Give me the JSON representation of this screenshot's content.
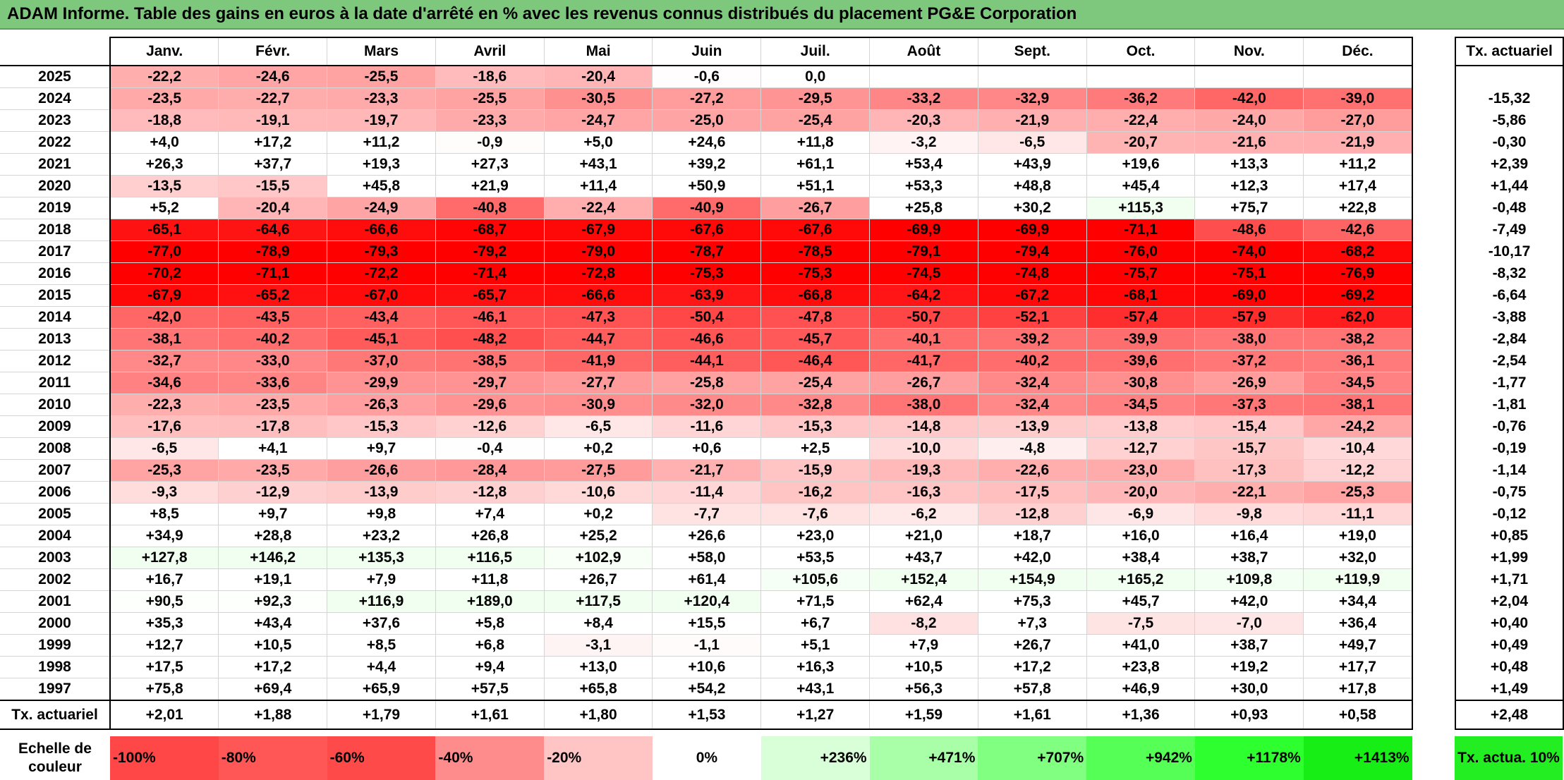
{
  "title": "ADAM Informe. Table des gains en euros à la date d'arrêté en % avec les revenus connus distribués du placement PG&E Corporation",
  "months": [
    "Janv.",
    "Févr.",
    "Mars",
    "Avril",
    "Mai",
    "Juin",
    "Juil.",
    "Août",
    "Sept.",
    "Oct.",
    "Nov.",
    "Déc."
  ],
  "side_header": "Tx. actuariel",
  "rows": [
    {
      "year": "2025",
      "values": [
        "-22,2",
        "-24,6",
        "-25,5",
        "-18,6",
        "-20,4",
        "-0,6",
        "0,0",
        "",
        "",
        "",
        "",
        ""
      ],
      "tx": ""
    },
    {
      "year": "2024",
      "values": [
        "-23,5",
        "-22,7",
        "-23,3",
        "-25,5",
        "-30,5",
        "-27,2",
        "-29,5",
        "-33,2",
        "-32,9",
        "-36,2",
        "-42,0",
        "-39,0"
      ],
      "tx": "-15,32"
    },
    {
      "year": "2023",
      "values": [
        "-18,8",
        "-19,1",
        "-19,7",
        "-23,3",
        "-24,7",
        "-25,0",
        "-25,4",
        "-20,3",
        "-21,9",
        "-22,4",
        "-24,0",
        "-27,0"
      ],
      "tx": "-5,86"
    },
    {
      "year": "2022",
      "values": [
        "+4,0",
        "+17,2",
        "+11,2",
        "-0,9",
        "+5,0",
        "+24,6",
        "+11,8",
        "-3,2",
        "-6,5",
        "-20,7",
        "-21,6",
        "-21,9"
      ],
      "tx": "-0,30"
    },
    {
      "year": "2021",
      "values": [
        "+26,3",
        "+37,7",
        "+19,3",
        "+27,3",
        "+43,1",
        "+39,2",
        "+61,1",
        "+53,4",
        "+43,9",
        "+19,6",
        "+13,3",
        "+11,2"
      ],
      "tx": "+2,39"
    },
    {
      "year": "2020",
      "values": [
        "-13,5",
        "-15,5",
        "+45,8",
        "+21,9",
        "+11,4",
        "+50,9",
        "+51,1",
        "+53,3",
        "+48,8",
        "+45,4",
        "+12,3",
        "+17,4"
      ],
      "tx": "+1,44"
    },
    {
      "year": "2019",
      "values": [
        "+5,2",
        "-20,4",
        "-24,9",
        "-40,8",
        "-22,4",
        "-40,9",
        "-26,7",
        "+25,8",
        "+30,2",
        "+115,3",
        "+75,7",
        "+22,8"
      ],
      "tx": "-0,48"
    },
    {
      "year": "2018",
      "values": [
        "-65,1",
        "-64,6",
        "-66,6",
        "-68,7",
        "-67,9",
        "-67,6",
        "-67,6",
        "-69,9",
        "-69,9",
        "-71,1",
        "-48,6",
        "-42,6"
      ],
      "tx": "-7,49"
    },
    {
      "year": "2017",
      "values": [
        "-77,0",
        "-78,9",
        "-79,3",
        "-79,2",
        "-79,0",
        "-78,7",
        "-78,5",
        "-79,1",
        "-79,4",
        "-76,0",
        "-74,0",
        "-68,2"
      ],
      "tx": "-10,17"
    },
    {
      "year": "2016",
      "values": [
        "-70,2",
        "-71,1",
        "-72,2",
        "-71,4",
        "-72,8",
        "-75,3",
        "-75,3",
        "-74,5",
        "-74,8",
        "-75,7",
        "-75,1",
        "-76,9"
      ],
      "tx": "-8,32"
    },
    {
      "year": "2015",
      "values": [
        "-67,9",
        "-65,2",
        "-67,0",
        "-65,7",
        "-66,6",
        "-63,9",
        "-66,8",
        "-64,2",
        "-67,2",
        "-68,1",
        "-69,0",
        "-69,2"
      ],
      "tx": "-6,64"
    },
    {
      "year": "2014",
      "values": [
        "-42,0",
        "-43,5",
        "-43,4",
        "-46,1",
        "-47,3",
        "-50,4",
        "-47,8",
        "-50,7",
        "-52,1",
        "-57,4",
        "-57,9",
        "-62,0"
      ],
      "tx": "-3,88"
    },
    {
      "year": "2013",
      "values": [
        "-38,1",
        "-40,2",
        "-45,1",
        "-48,2",
        "-44,7",
        "-46,6",
        "-45,7",
        "-40,1",
        "-39,2",
        "-39,9",
        "-38,0",
        "-38,2"
      ],
      "tx": "-2,84"
    },
    {
      "year": "2012",
      "values": [
        "-32,7",
        "-33,0",
        "-37,0",
        "-38,5",
        "-41,9",
        "-44,1",
        "-46,4",
        "-41,7",
        "-40,2",
        "-39,6",
        "-37,2",
        "-36,1"
      ],
      "tx": "-2,54"
    },
    {
      "year": "2011",
      "values": [
        "-34,6",
        "-33,6",
        "-29,9",
        "-29,7",
        "-27,7",
        "-25,8",
        "-25,4",
        "-26,7",
        "-32,4",
        "-30,8",
        "-26,9",
        "-34,5"
      ],
      "tx": "-1,77"
    },
    {
      "year": "2010",
      "values": [
        "-22,3",
        "-23,5",
        "-26,3",
        "-29,6",
        "-30,9",
        "-32,0",
        "-32,8",
        "-38,0",
        "-32,4",
        "-34,5",
        "-37,3",
        "-38,1"
      ],
      "tx": "-1,81"
    },
    {
      "year": "2009",
      "values": [
        "-17,6",
        "-17,8",
        "-15,3",
        "-12,6",
        "-6,5",
        "-11,6",
        "-15,3",
        "-14,8",
        "-13,9",
        "-13,8",
        "-15,4",
        "-24,2"
      ],
      "tx": "-0,76"
    },
    {
      "year": "2008",
      "values": [
        "-6,5",
        "+4,1",
        "+9,7",
        "-0,4",
        "+0,2",
        "+0,6",
        "+2,5",
        "-10,0",
        "-4,8",
        "-12,7",
        "-15,7",
        "-10,4"
      ],
      "tx": "-0,19"
    },
    {
      "year": "2007",
      "values": [
        "-25,3",
        "-23,5",
        "-26,6",
        "-28,4",
        "-27,5",
        "-21,7",
        "-15,9",
        "-19,3",
        "-22,6",
        "-23,0",
        "-17,3",
        "-12,2"
      ],
      "tx": "-1,14"
    },
    {
      "year": "2006",
      "values": [
        "-9,3",
        "-12,9",
        "-13,9",
        "-12,8",
        "-10,6",
        "-11,4",
        "-16,2",
        "-16,3",
        "-17,5",
        "-20,0",
        "-22,1",
        "-25,3"
      ],
      "tx": "-0,75"
    },
    {
      "year": "2005",
      "values": [
        "+8,5",
        "+9,7",
        "+9,8",
        "+7,4",
        "+0,2",
        "-7,7",
        "-7,6",
        "-6,2",
        "-12,8",
        "-6,9",
        "-9,8",
        "-11,1"
      ],
      "tx": "-0,12"
    },
    {
      "year": "2004",
      "values": [
        "+34,9",
        "+28,8",
        "+23,2",
        "+26,8",
        "+25,2",
        "+26,6",
        "+23,0",
        "+21,0",
        "+18,7",
        "+16,0",
        "+16,4",
        "+19,0"
      ],
      "tx": "+0,85"
    },
    {
      "year": "2003",
      "values": [
        "+127,8",
        "+146,2",
        "+135,3",
        "+116,5",
        "+102,9",
        "+58,0",
        "+53,5",
        "+43,7",
        "+42,0",
        "+38,4",
        "+38,7",
        "+32,0"
      ],
      "tx": "+1,99"
    },
    {
      "year": "2002",
      "values": [
        "+16,7",
        "+19,1",
        "+7,9",
        "+11,8",
        "+26,7",
        "+61,4",
        "+105,6",
        "+152,4",
        "+154,9",
        "+165,2",
        "+109,8",
        "+119,9"
      ],
      "tx": "+1,71"
    },
    {
      "year": "2001",
      "values": [
        "+90,5",
        "+92,3",
        "+116,9",
        "+189,0",
        "+117,5",
        "+120,4",
        "+71,5",
        "+62,4",
        "+75,3",
        "+45,7",
        "+42,0",
        "+34,4"
      ],
      "tx": "+2,04"
    },
    {
      "year": "2000",
      "values": [
        "+35,3",
        "+43,4",
        "+37,6",
        "+5,8",
        "+8,4",
        "+15,5",
        "+6,7",
        "-8,2",
        "+7,3",
        "-7,5",
        "-7,0",
        "+36,4"
      ],
      "tx": "+0,40"
    },
    {
      "year": "1999",
      "values": [
        "+12,7",
        "+10,5",
        "+8,5",
        "+6,8",
        "-3,1",
        "-1,1",
        "+5,1",
        "+7,9",
        "+26,7",
        "+41,0",
        "+38,7",
        "+49,7"
      ],
      "tx": "+0,49"
    },
    {
      "year": "1998",
      "values": [
        "+17,5",
        "+17,2",
        "+4,4",
        "+9,4",
        "+13,0",
        "+10,6",
        "+16,3",
        "+10,5",
        "+17,2",
        "+23,8",
        "+19,2",
        "+17,7"
      ],
      "tx": "+0,48"
    },
    {
      "year": "1997",
      "values": [
        "+75,8",
        "+69,4",
        "+65,9",
        "+57,5",
        "+65,8",
        "+54,2",
        "+43,1",
        "+56,3",
        "+57,8",
        "+46,9",
        "+30,0",
        "+17,8"
      ],
      "tx": "+1,49"
    }
  ],
  "footer": {
    "label": "Tx. actuariel",
    "values": [
      "+2,01",
      "+1,88",
      "+1,79",
      "+1,61",
      "+1,80",
      "+1,53",
      "+1,27",
      "+1,59",
      "+1,61",
      "+1,36",
      "+0,93",
      "+0,58"
    ],
    "tx": "+2,48"
  },
  "legend": {
    "label": "Echelle de couleur",
    "items": [
      {
        "text": "-100%",
        "color": "#ff4747",
        "kind": "neg"
      },
      {
        "text": "-80%",
        "color": "#ff5656",
        "kind": "neg"
      },
      {
        "text": "-60%",
        "color": "#ff4a4a",
        "kind": "neg"
      },
      {
        "text": "-40%",
        "color": "#ff8c8c",
        "kind": "neg"
      },
      {
        "text": "-20%",
        "color": "#ffc4c4",
        "kind": "neg"
      },
      {
        "text": "0%",
        "color": "#ffffff",
        "kind": "zero"
      },
      {
        "text": "+236%",
        "color": "#d8ffd8",
        "kind": "pos"
      },
      {
        "text": "+471%",
        "color": "#a8ffa8",
        "kind": "pos"
      },
      {
        "text": "+707%",
        "color": "#80ff80",
        "kind": "pos"
      },
      {
        "text": "+942%",
        "color": "#55ff55",
        "kind": "pos"
      },
      {
        "text": "+1178%",
        "color": "#2eff2e",
        "kind": "pos"
      },
      {
        "text": "+1413%",
        "color": "#16ee16",
        "kind": "pos"
      }
    ],
    "side": "Tx. actua. 10%"
  }
}
